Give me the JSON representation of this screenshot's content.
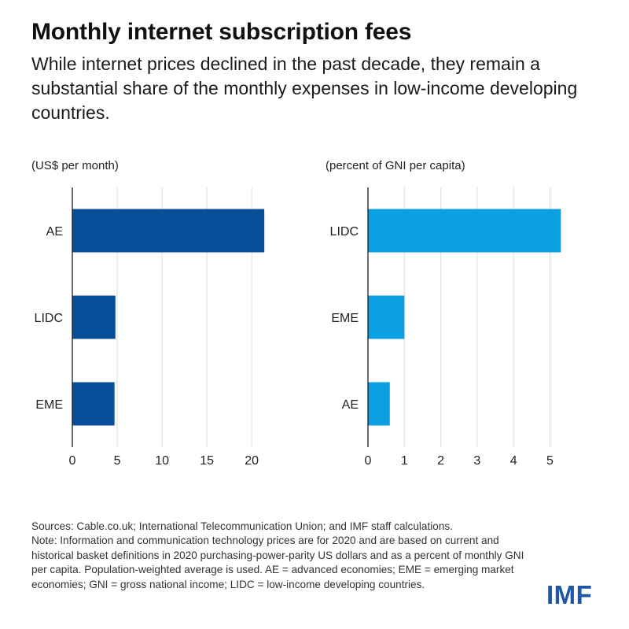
{
  "title": "Monthly internet subscription fees",
  "subtitle": "While internet prices declined in the past decade, they remain a substantial share of the monthly expenses in low-income developing countries.",
  "chart_data": [
    {
      "type": "bar",
      "orientation": "horizontal",
      "unit_label": "(US$ per month)",
      "categories": [
        "AE",
        "LIDC",
        "EME"
      ],
      "values": [
        21.4,
        4.8,
        4.7
      ],
      "xlim": [
        0,
        22
      ],
      "xticks": [
        0,
        5,
        10,
        15,
        20
      ],
      "grid": "vertical",
      "color": "#064e9a"
    },
    {
      "type": "bar",
      "orientation": "horizontal",
      "unit_label": "(percent of GNI per capita)",
      "categories": [
        "LIDC",
        "EME",
        "AE"
      ],
      "values": [
        5.3,
        1.0,
        0.6
      ],
      "xlim": [
        0,
        5.4
      ],
      "xticks": [
        0,
        1,
        2,
        3,
        4,
        5
      ],
      "grid": "vertical",
      "color": "#0a9fe0"
    }
  ],
  "sources": "Sources: Cable.co.uk; International Telecommunication Union; and IMF staff calculations.",
  "note": "Note: Information and communication technology prices are for 2020 and are based on current and historical basket definitions in 2020 purchasing-power-parity US dollars and as a percent of monthly GNI per capita. Population-weighted average is used. AE = advanced economies; EME = emerging market economies; GNI = gross national income; LIDC = low-income developing countries.",
  "logo_text": "IMF"
}
